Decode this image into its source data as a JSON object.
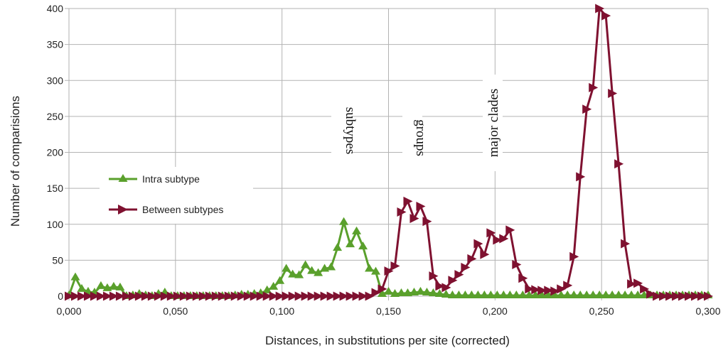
{
  "chart_data": {
    "type": "line",
    "title": "",
    "xlabel": "Distances, in substitutions per site (corrected)",
    "ylabel": "Number of comparisions",
    "xlim": [
      0,
      0.3
    ],
    "ylim": [
      0,
      400
    ],
    "grid": true,
    "legend_position": "left",
    "x_ticks": [
      "0,000",
      "0,050",
      "0,100",
      "0,150",
      "0,200",
      "0,250",
      "0,300"
    ],
    "y_ticks": [
      "0",
      "50",
      "100",
      "150",
      "200",
      "250",
      "300",
      "350",
      "400"
    ],
    "annotations": [
      "subtypes",
      "groups",
      "major clades"
    ],
    "series": [
      {
        "name": "Intra subtype",
        "color": "#5aa02c",
        "marker": "triangle-up",
        "x": [
          0.0,
          0.003,
          0.006,
          0.009,
          0.012,
          0.015,
          0.018,
          0.021,
          0.024,
          0.027,
          0.03,
          0.033,
          0.036,
          0.039,
          0.042,
          0.045,
          0.048,
          0.051,
          0.054,
          0.057,
          0.06,
          0.063,
          0.066,
          0.069,
          0.072,
          0.075,
          0.078,
          0.081,
          0.084,
          0.087,
          0.09,
          0.093,
          0.096,
          0.099,
          0.102,
          0.105,
          0.108,
          0.111,
          0.114,
          0.117,
          0.12,
          0.123,
          0.126,
          0.129,
          0.132,
          0.135,
          0.138,
          0.141,
          0.144,
          0.147,
          0.15,
          0.153,
          0.156,
          0.159,
          0.162,
          0.165,
          0.168,
          0.171,
          0.174,
          0.177,
          0.18,
          0.183,
          0.186,
          0.189,
          0.192,
          0.195,
          0.198,
          0.201,
          0.204,
          0.207,
          0.21,
          0.213,
          0.216,
          0.219,
          0.222,
          0.225,
          0.228,
          0.231,
          0.234,
          0.237,
          0.24,
          0.243,
          0.246,
          0.249,
          0.252,
          0.255,
          0.258,
          0.261,
          0.264,
          0.267,
          0.27,
          0.273,
          0.276,
          0.279,
          0.282,
          0.285,
          0.288,
          0.291,
          0.294,
          0.297,
          0.3
        ],
        "y": [
          1,
          26,
          10,
          6,
          5,
          14,
          11,
          13,
          12,
          0,
          1,
          3,
          1,
          0,
          3,
          5,
          0,
          0,
          0,
          0,
          0,
          0,
          0,
          0,
          0,
          0,
          1,
          2,
          2,
          3,
          4,
          8,
          13,
          21,
          38,
          30,
          29,
          43,
          35,
          32,
          38,
          40,
          67,
          103,
          72,
          90,
          69,
          38,
          34,
          3,
          6,
          3,
          4,
          4,
          5,
          6,
          5,
          4,
          3,
          2,
          1,
          1,
          1,
          1,
          1,
          1,
          1,
          1,
          1,
          1,
          1,
          1,
          1,
          1,
          1,
          1,
          1,
          1,
          1,
          1,
          1,
          1,
          1,
          1,
          1,
          1,
          1,
          1,
          1,
          1,
          1,
          1,
          1,
          1,
          1,
          1,
          1,
          1,
          1,
          1,
          1
        ]
      },
      {
        "name": "Between subtypes",
        "color": "#7f1130",
        "marker": "triangle-right",
        "x": [
          0.0,
          0.003,
          0.006,
          0.009,
          0.012,
          0.015,
          0.018,
          0.021,
          0.024,
          0.027,
          0.03,
          0.033,
          0.036,
          0.039,
          0.042,
          0.045,
          0.048,
          0.051,
          0.054,
          0.057,
          0.06,
          0.063,
          0.066,
          0.069,
          0.072,
          0.075,
          0.078,
          0.081,
          0.084,
          0.087,
          0.09,
          0.093,
          0.096,
          0.099,
          0.102,
          0.105,
          0.108,
          0.111,
          0.114,
          0.117,
          0.12,
          0.123,
          0.126,
          0.129,
          0.132,
          0.135,
          0.138,
          0.141,
          0.144,
          0.147,
          0.15,
          0.153,
          0.156,
          0.159,
          0.162,
          0.165,
          0.168,
          0.171,
          0.174,
          0.177,
          0.18,
          0.183,
          0.186,
          0.189,
          0.192,
          0.195,
          0.198,
          0.201,
          0.204,
          0.207,
          0.21,
          0.213,
          0.216,
          0.219,
          0.222,
          0.225,
          0.228,
          0.231,
          0.234,
          0.237,
          0.24,
          0.243,
          0.246,
          0.249,
          0.252,
          0.255,
          0.258,
          0.261,
          0.264,
          0.267,
          0.27,
          0.273,
          0.276,
          0.279,
          0.282,
          0.285,
          0.288,
          0.291,
          0.294,
          0.297,
          0.3
        ],
        "y": [
          0,
          0,
          0,
          0,
          0,
          0,
          0,
          0,
          0,
          0,
          0,
          0,
          0,
          0,
          0,
          0,
          0,
          0,
          0,
          0,
          0,
          0,
          0,
          0,
          0,
          0,
          0,
          0,
          0,
          0,
          0,
          0,
          0,
          0,
          0,
          0,
          0,
          0,
          0,
          0,
          0,
          0,
          0,
          0,
          0,
          0,
          0,
          0,
          5,
          10,
          35,
          42,
          117,
          132,
          108,
          125,
          104,
          28,
          14,
          12,
          22,
          30,
          40,
          52,
          73,
          58,
          88,
          78,
          80,
          92,
          44,
          25,
          10,
          9,
          8,
          8,
          7,
          10,
          15,
          55,
          166,
          260,
          290,
          400,
          390,
          282,
          184,
          73,
          17,
          18,
          10,
          3,
          0,
          0,
          0,
          0,
          0,
          0,
          0,
          0,
          0
        ]
      }
    ]
  }
}
